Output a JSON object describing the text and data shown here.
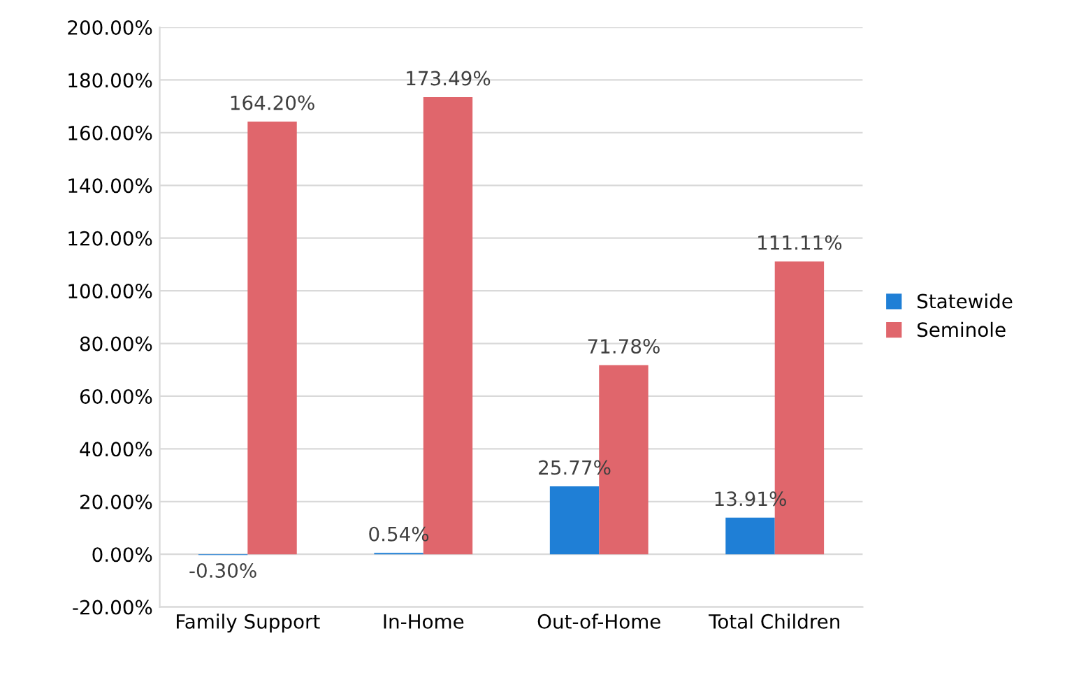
{
  "chart_data": {
    "type": "bar",
    "categories": [
      "Family Support",
      "In-Home",
      "Out-of-Home",
      "Total Children"
    ],
    "series": [
      {
        "name": "Statewide",
        "color": "#1f7fd6",
        "values": [
          -0.3,
          0.54,
          25.77,
          13.91
        ],
        "value_labels": [
          "-0.30%",
          "0.54%",
          "25.77%",
          "13.91%"
        ]
      },
      {
        "name": "Seminole",
        "color": "#e0666c",
        "values": [
          164.2,
          173.49,
          71.78,
          111.11
        ],
        "value_labels": [
          "164.20%",
          "173.49%",
          "71.78%",
          "111.11%"
        ]
      }
    ],
    "ylim": [
      -20,
      200
    ],
    "yticks": [
      {
        "value": -20,
        "label": "-20.00%"
      },
      {
        "value": 0,
        "label": "0.00%"
      },
      {
        "value": 20,
        "label": "20.00%"
      },
      {
        "value": 40,
        "label": "40.00%"
      },
      {
        "value": 60,
        "label": "60.00%"
      },
      {
        "value": 80,
        "label": "80.00%"
      },
      {
        "value": 100,
        "label": "100.00%"
      },
      {
        "value": 120,
        "label": "120.00%"
      },
      {
        "value": 140,
        "label": "140.00%"
      },
      {
        "value": 160,
        "label": "160.00%"
      },
      {
        "value": 180,
        "label": "180.00%"
      },
      {
        "value": 200,
        "label": "200.00%"
      }
    ],
    "grid": "y",
    "legend": "right"
  }
}
